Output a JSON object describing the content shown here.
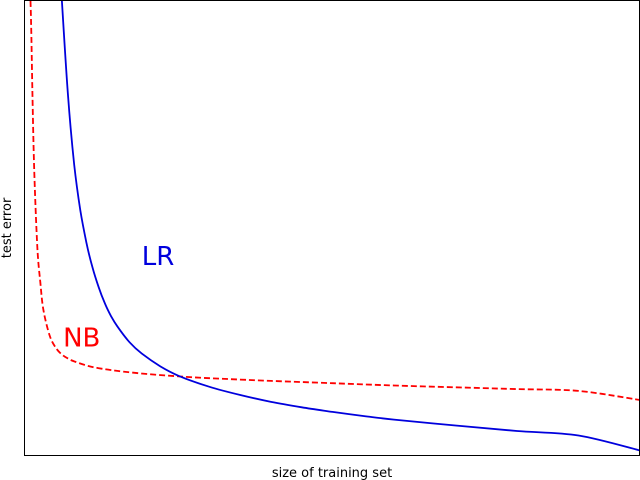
{
  "chart_data": {
    "type": "line",
    "title": "",
    "xlabel": "size of training set",
    "ylabel": "test error",
    "xlim": [
      0,
      100
    ],
    "ylim": [
      0,
      100
    ],
    "grid": false,
    "legend": "none",
    "ticks": "hidden",
    "series": [
      {
        "name": "NB",
        "color": "#ff0000",
        "line_style": "dashed",
        "x": [
          0.9,
          1,
          1.2,
          1.5,
          2,
          2.5,
          3,
          4,
          5,
          6,
          7,
          8,
          10,
          12,
          15,
          20,
          25,
          30,
          35,
          40,
          50,
          60,
          70,
          80,
          90,
          100
        ],
        "y": [
          100,
          95,
          80,
          63,
          46,
          38,
          32,
          26.5,
          23.8,
          22.3,
          21.4,
          20.8,
          19.9,
          19.3,
          18.7,
          18.0,
          17.5,
          17.1,
          16.8,
          16.5,
          16.0,
          15.5,
          15.1,
          14.7,
          14.3,
          12.3
        ]
      },
      {
        "name": "LR",
        "color": "#0000dd",
        "line_style": "solid",
        "x": [
          6,
          7,
          8,
          9,
          10,
          11,
          12,
          13,
          14,
          15,
          17,
          19,
          22,
          25,
          30,
          35,
          40,
          45,
          50,
          55,
          60,
          70,
          80,
          90,
          100
        ],
        "y": [
          100,
          79,
          64,
          54,
          46.8,
          41.3,
          37.0,
          33.5,
          30.7,
          28.5,
          25.0,
          22.5,
          19.7,
          17.6,
          15.2,
          13.4,
          11.9,
          10.7,
          9.7,
          8.8,
          8.0,
          6.7,
          5.5,
          4.5,
          1.2
        ]
      }
    ],
    "annotations": [
      {
        "text": "LR",
        "x": 19,
        "y": 42,
        "color": "#0000dd"
      },
      {
        "text": "NB",
        "x": 6.2,
        "y": 24.1,
        "color": "#ff0000"
      }
    ]
  }
}
